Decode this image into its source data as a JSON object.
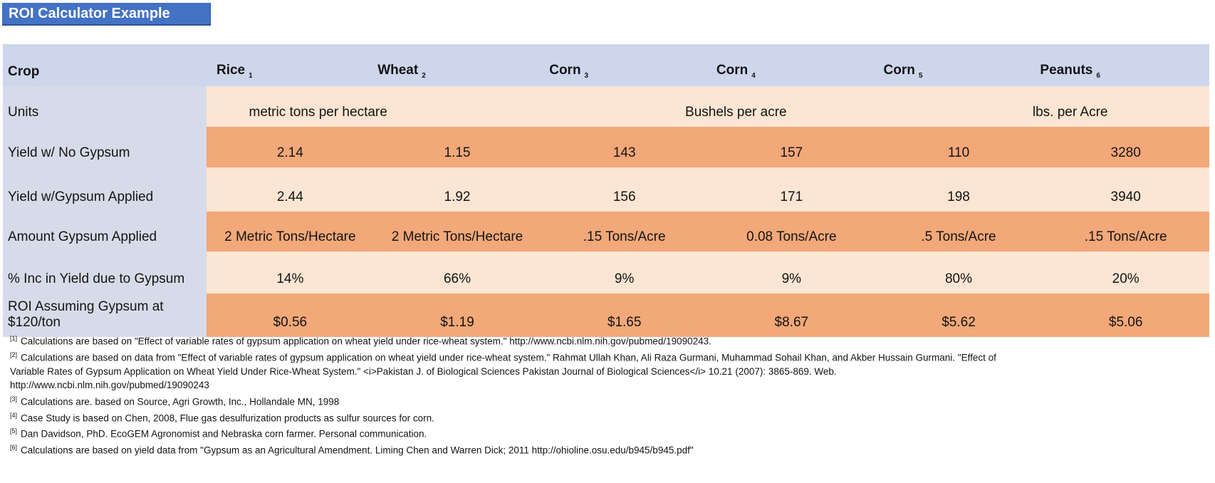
{
  "title": "ROI Calculator Example",
  "colors": {
    "title_bg": "#4472C4",
    "title_text": "#FFFFFF",
    "header_row_bg": "#CED6EC",
    "label_col_bg": "#D7DBE9",
    "row_light_bg": "#FCE5D3",
    "row_dark_bg": "#F2A878"
  },
  "table": {
    "corner_label": "Crop",
    "columns": [
      {
        "name": "Rice",
        "footnote": "1"
      },
      {
        "name": "Wheat",
        "footnote": "2"
      },
      {
        "name": "Corn",
        "footnote": "3"
      },
      {
        "name": "Corn",
        "footnote": "4"
      },
      {
        "name": "Corn",
        "footnote": "5"
      },
      {
        "name": "Peanuts",
        "footnote": "6"
      }
    ],
    "units_row": {
      "label": "Units",
      "spans": [
        {
          "label": "metric tons per hectare",
          "span": 2
        },
        {
          "label": "Bushels per acre",
          "span": 3
        },
        {
          "label": "lbs. per Acre",
          "span": 1
        }
      ]
    },
    "rows": [
      {
        "label": "Yield w/ No Gypsum",
        "values": [
          "2.14",
          "1.15",
          "143",
          "157",
          "110",
          "3280"
        ]
      },
      {
        "label": "Yield w/Gypsum Applied",
        "values": [
          "2.44",
          "1.92",
          "156",
          "171",
          "198",
          "3940"
        ]
      },
      {
        "label": "Amount Gypsum Applied",
        "values": [
          "2 Metric Tons/Hectare",
          "2 Metric Tons/Hectare",
          ".15 Tons/Acre",
          "0.08 Tons/Acre",
          ".5 Tons/Acre",
          ".15 Tons/Acre"
        ]
      },
      {
        "label": "% Inc in Yield due to Gypsum",
        "values": [
          "14%",
          "66%",
          "9%",
          "9%",
          "80%",
          "20%"
        ]
      },
      {
        "label": "ROI Assuming Gypsum at $120/ton",
        "values": [
          "$0.56",
          "$1.19",
          "$1.65",
          "$8.67",
          "$5.62",
          "$5.06"
        ]
      }
    ]
  },
  "footnotes": [
    {
      "marker": "[1]",
      "text": "Calculations are based on \"Effect of variable rates of gypsum application on wheat yield under rice-wheat system.\"  http://www.ncbi.nlm.nih.gov/pubmed/19090243."
    },
    {
      "marker": "[2]",
      "text": "Calculations are based on data from \"Effect of variable rates of gypsum application on wheat yield under rice-wheat system.\"  Rahmat Ullah Khan, Ali Raza Gurmani, Muhammad Sohail Khan, and Akber Hussain Gurmani. \"Effect of"
    },
    {
      "marker": "",
      "text": "Variable Rates of Gypsum Application on Wheat Yield Under Rice-Wheat System.\" <i>Pakistan J. of Biological Sciences Pakistan Journal of Biological Sciences</i> 10.21 (2007): 3865-869. Web."
    },
    {
      "marker": "",
      "text": "http://www.ncbi.nlm.nih.gov/pubmed/19090243"
    },
    {
      "marker": "[3]",
      "text": "Calculations are. based on Source, Agri Growth, Inc., Hollandale MN, 1998"
    },
    {
      "marker": "[4]",
      "text": "Case Study is based on Chen, 2008, Flue gas desulfurization products as sulfur sources for corn."
    },
    {
      "marker": "[5]",
      "text": "Dan Davidson, PhD. EcoGEM Agronomist and Nebraska corn farmer.  Personal communication."
    },
    {
      "marker": "[6]",
      "text": "Calculations are based on yield data from \"Gypsum as an Agricultural Amendment. Liming Chen and Warren Dick; 2011 http://ohioline.osu.edu/b945/b945.pdf\""
    }
  ]
}
